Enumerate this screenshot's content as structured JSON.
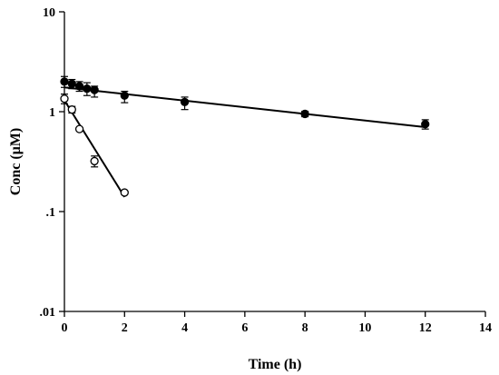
{
  "chart_data": {
    "type": "scatter",
    "title": "",
    "xlabel": "Time (h)",
    "ylabel": "Conc (μM)",
    "xlim": [
      0,
      14
    ],
    "ylim": [
      0.01,
      10
    ],
    "yscale": "log",
    "grid": false,
    "x_ticks": [
      0,
      2,
      4,
      6,
      8,
      10,
      12,
      14
    ],
    "x_tick_labels": [
      "0",
      "2",
      "4",
      "6",
      "8",
      "10",
      "12",
      "14"
    ],
    "y_ticks": [
      0.01,
      0.1,
      1,
      10
    ],
    "y_tick_labels": [
      ".01",
      ".1",
      "1",
      "10"
    ],
    "series": [
      {
        "marker": "filled-circle",
        "color": "#000000",
        "x": [
          0,
          0.25,
          0.5,
          0.75,
          1,
          2,
          4,
          8,
          12
        ],
        "y": [
          2.0,
          1.9,
          1.8,
          1.7,
          1.65,
          1.45,
          1.25,
          0.95,
          0.75
        ],
        "error_upper": [
          0.25,
          0.2,
          0.2,
          0.25,
          0.15,
          0.15,
          0.15,
          0.06,
          0.08
        ],
        "error_lower": [
          0.25,
          0.2,
          0.2,
          0.25,
          0.25,
          0.22,
          0.2,
          0.06,
          0.08
        ],
        "fit_line": {
          "x": [
            0,
            12
          ],
          "y": [
            1.75,
            0.7
          ]
        }
      },
      {
        "marker": "open-circle",
        "color": "#000000",
        "x": [
          0,
          0.25,
          0.5,
          1,
          2
        ],
        "y": [
          1.35,
          1.05,
          0.67,
          0.32,
          0.155
        ],
        "error_upper": [
          0.15,
          0.08,
          0.0,
          0.04,
          0.0
        ],
        "error_lower": [
          0.15,
          0.08,
          0.0,
          0.04,
          0.0
        ],
        "fit_line": {
          "x": [
            0,
            2
          ],
          "y": [
            1.3,
            0.14
          ]
        }
      }
    ]
  }
}
